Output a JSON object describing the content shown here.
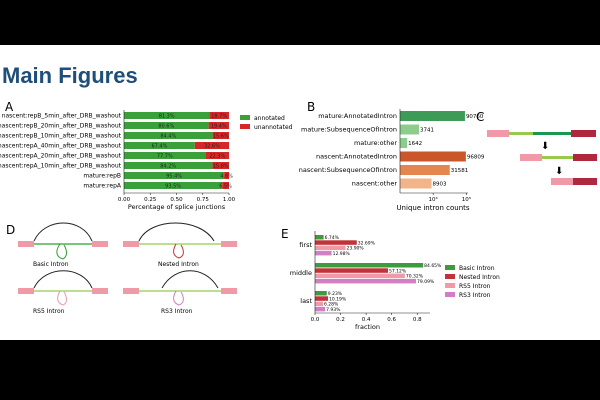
{
  "slide": {
    "title": "Main Figures"
  },
  "colors": {
    "annotated": "#3aa13a",
    "unannotated": "#d62728",
    "mature_a": "#3d9a57",
    "mature_b": "#8ccc8c",
    "nascent_a": "#c9572a",
    "nascent_b": "#e3864f",
    "nascent_c": "#f2b489",
    "basic": "#3d9a3d",
    "nested": "#c0333a",
    "rs5": "#ef9aa6",
    "rs3": "#d27ec2",
    "title": "#1f4e79"
  },
  "panels": {
    "A": {
      "label": "A"
    },
    "B": {
      "label": "B"
    },
    "C": {
      "label": "C"
    },
    "D": {
      "label": "D",
      "captions": [
        "Basic Intron",
        "Nested Intron",
        "RS5 Intron",
        "RS3 Intron"
      ]
    },
    "E": {
      "label": "E"
    }
  },
  "chart_data": [
    {
      "id": "A",
      "type": "bar",
      "orientation": "horizontal-stacked",
      "xlabel": "Percentage of splice junctions",
      "xlim": [
        0,
        1
      ],
      "xticks": [
        "0.00",
        "0.25",
        "0.50",
        "0.75",
        "1.00"
      ],
      "categories": [
        "nascent:repB_5min_after_DRB_washout",
        "nascent:repB_20min_after_DRB_washout",
        "nascent:repB_10min_after_DRB_washout",
        "nascent:repA_40min_after_DRB_washout",
        "nascent:repA_20min_after_DRB_washout",
        "nascent:repA_10min_after_DRB_washout",
        "mature:repB",
        "mature:repA"
      ],
      "series": [
        {
          "name": "annotated",
          "values": [
            0.813,
            0.806,
            0.844,
            0.674,
            0.777,
            0.842,
            0.954,
            0.935
          ],
          "labels": [
            "81.3%",
            "80.6%",
            "84.4%",
            "67.4%",
            "77.7%",
            "84.2%",
            "95.4%",
            "93.5%"
          ]
        },
        {
          "name": "unannotated",
          "values": [
            0.187,
            0.194,
            0.156,
            0.326,
            0.223,
            0.158,
            0.046,
            0.065
          ],
          "labels": [
            "18.7%",
            "19.4%",
            "15.6%",
            "32.6%",
            "22.3%",
            "15.8%",
            "4.6%",
            "6.5%"
          ]
        }
      ],
      "legend": [
        "annotated",
        "unannotated"
      ]
    },
    {
      "id": "B",
      "type": "bar",
      "orientation": "horizontal",
      "scale": "log",
      "xlabel": "Unique intron counts",
      "xticks": [
        "10⁴",
        "10⁵"
      ],
      "categories": [
        "mature:AnnotatedIntron",
        "mature:SubsequenceOfIntron",
        "mature:other",
        "nascent:AnnotatedIntron",
        "nascent:SubsequenceOfIntron",
        "nascent:other"
      ],
      "values": [
        90760,
        3741,
        1642,
        96809,
        31581,
        8903
      ],
      "labels": [
        "90760",
        "3741",
        "1642",
        "96809",
        "31581",
        "8903"
      ]
    },
    {
      "id": "E",
      "type": "bar",
      "orientation": "horizontal-grouped",
      "xlabel": "fraction",
      "xlim": [
        0,
        0.9
      ],
      "xticks": [
        "0.0",
        "0.2",
        "0.4",
        "0.6",
        "0.8"
      ],
      "categories": [
        "first",
        "middle",
        "last"
      ],
      "series": [
        {
          "name": "Basic Intron",
          "values": [
            0.0674,
            0.8465,
            0.0923
          ],
          "labels": [
            "6.74%",
            "84.65%",
            "9.23%"
          ]
        },
        {
          "name": "Nested Intron",
          "values": [
            0.3269,
            0.5712,
            0.1019
          ],
          "labels": [
            "32.69%",
            "57.12%",
            "10.19%"
          ]
        },
        {
          "name": "RS5 Intron",
          "values": [
            0.239,
            0.7032,
            0.0628
          ],
          "labels": [
            "23.90%",
            "70.32%",
            "6.28%"
          ]
        },
        {
          "name": "RS3 Intron",
          "values": [
            0.1298,
            0.7909,
            0.0793
          ],
          "labels": [
            "12.98%",
            "79.09%",
            "7.93%"
          ]
        }
      ],
      "legend": [
        "Basic Intron",
        "Nested Intron",
        "RS5 Intron",
        "RS3 Intron"
      ]
    }
  ]
}
